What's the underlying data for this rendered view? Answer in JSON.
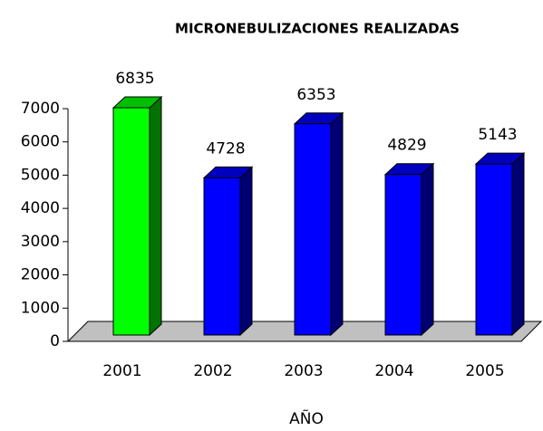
{
  "chart_data": {
    "type": "bar3d",
    "title": "MICRONEBULIZACIONES REALIZADAS",
    "x_label": "AÑO",
    "categories": [
      "2001",
      "2002",
      "2003",
      "2004",
      "2005"
    ],
    "values": [
      6835,
      4728,
      6353,
      4829,
      5143
    ],
    "colors": [
      "#00ff00",
      "#0000ff",
      "#0000ff",
      "#0000ff",
      "#0000ff"
    ],
    "ylim": [
      0,
      7000
    ],
    "yticks": [
      0,
      1000,
      2000,
      3000,
      4000,
      5000,
      6000,
      7000
    ]
  }
}
